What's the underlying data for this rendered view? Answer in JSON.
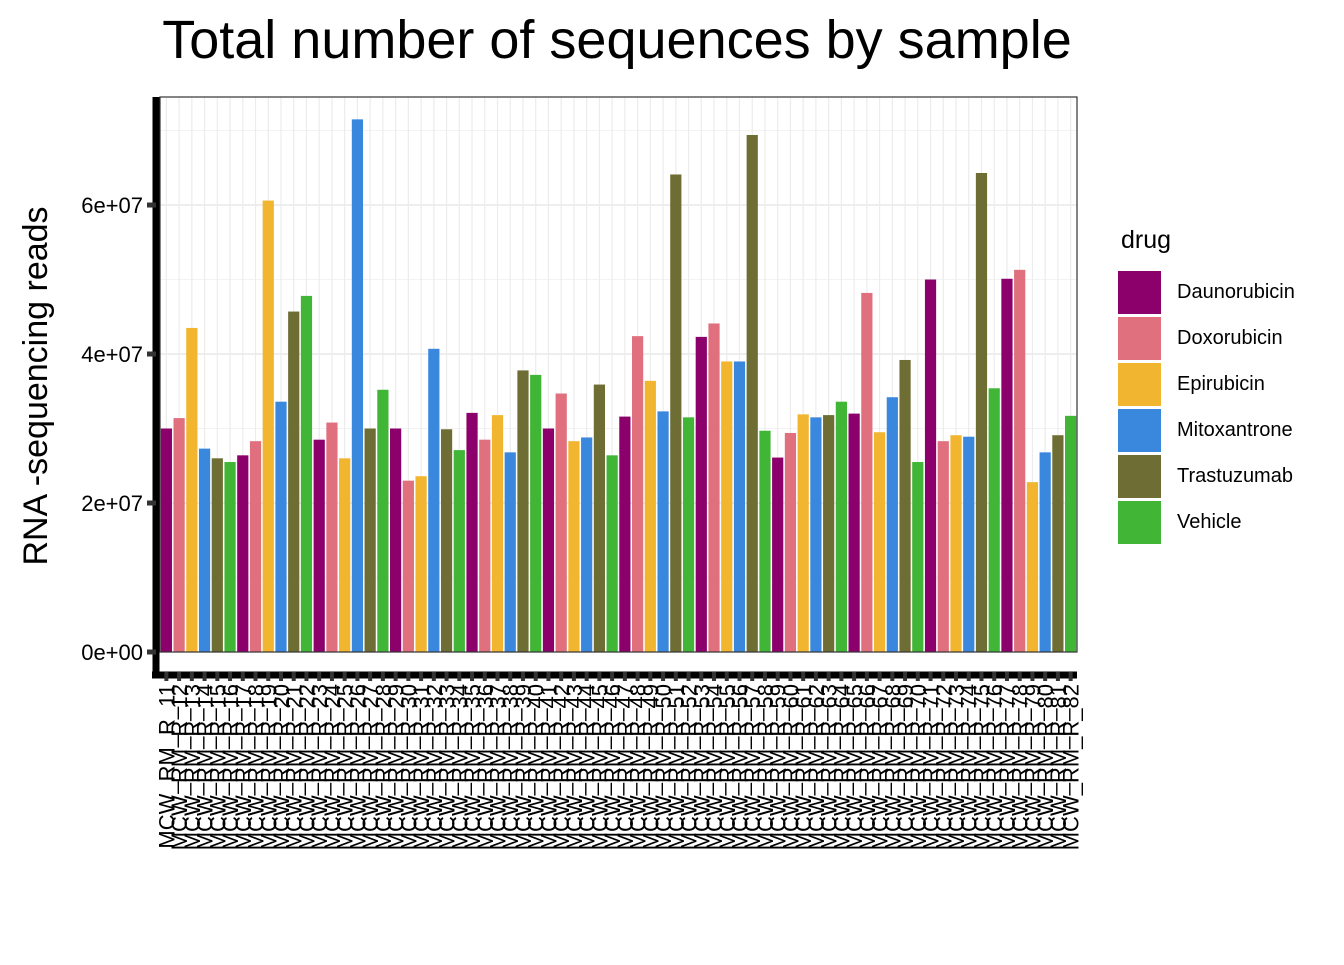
{
  "chart_data": {
    "type": "bar",
    "title": "Total number of sequences by sample",
    "xlabel": "",
    "ylabel": "RNA -sequencing reads",
    "ylim": [
      0,
      74500000
    ],
    "yticks": [
      0,
      20000000,
      40000000,
      60000000
    ],
    "ytick_labels": [
      "0e+00",
      "2e+07",
      "4e+07",
      "6e+07"
    ],
    "grid": true,
    "legend": {
      "title": "drug",
      "placement": "right"
    },
    "series_colors": {
      "Daunorubicin": "#8B006B",
      "Doxorubicin": "#E0707E",
      "Epirubicin": "#F2B530",
      "Mitoxantrone": "#3A87DE",
      "Trastuzumab": "#6E6E34",
      "Vehicle": "#41B535"
    },
    "legend_items": [
      "Daunorubicin",
      "Doxorubicin",
      "Epirubicin",
      "Mitoxantrone",
      "Trastuzumab",
      "Vehicle"
    ],
    "categories": [
      "MCW_RM_R_11",
      "MCW_RM_R_12",
      "MCW_RM_R_13",
      "MCW_RM_R_14",
      "MCW_RM_R_15",
      "MCW_RM_R_16",
      "MCW_RM_R_17",
      "MCW_RM_R_18",
      "MCW_RM_R_19",
      "MCW_RM_R_20",
      "MCW_RM_R_21",
      "MCW_RM_R_22",
      "MCW_RM_R_23",
      "MCW_RM_R_24",
      "MCW_RM_R_25",
      "MCW_RM_R_26",
      "MCW_RM_R_27",
      "MCW_RM_R_28",
      "MCW_RM_R_29",
      "MCW_RM_R_30",
      "MCW_RM_R_31",
      "MCW_RM_R_32",
      "MCW_RM_R_33",
      "MCW_RM_R_34",
      "MCW_RM_R_35",
      "MCW_RM_R_36",
      "MCW_RM_R_37",
      "MCW_RM_R_38",
      "MCW_RM_R_39",
      "MCW_RM_R_40",
      "MCW_RM_R_41",
      "MCW_RM_R_42",
      "MCW_RM_R_43",
      "MCW_RM_R_44",
      "MCW_RM_R_45",
      "MCW_RM_R_46",
      "MCW_RM_R_47",
      "MCW_RM_R_48",
      "MCW_RM_R_49",
      "MCW_RM_R_50",
      "MCW_RM_R_51",
      "MCW_RM_R_52",
      "MCW_RM_R_53",
      "MCW_RM_R_54",
      "MCW_RM_R_55",
      "MCW_RM_R_56",
      "MCW_RM_R_57",
      "MCW_RM_R_58",
      "MCW_RM_R_59",
      "MCW_RM_R_60",
      "MCW_RM_R_61",
      "MCW_RM_R_62",
      "MCW_RM_R_63",
      "MCW_RM_R_64",
      "MCW_RM_R_65",
      "MCW_RM_R_66",
      "MCW_RM_R_67",
      "MCW_RM_R_68",
      "MCW_RM_R_69",
      "MCW_RM_R_70",
      "MCW_RM_R_71",
      "MCW_RM_R_72",
      "MCW_RM_R_73",
      "MCW_RM_R_74",
      "MCW_RM_R_75",
      "MCW_RM_R_76",
      "MCW_RM_R_77",
      "MCW_RM_R_78",
      "MCW_RM_R_79",
      "MCW_RM_R_80",
      "MCW_RM_R_81",
      "MCW_RM_R_82"
    ],
    "drugs": [
      "Daunorubicin",
      "Doxorubicin",
      "Epirubicin",
      "Mitoxantrone",
      "Trastuzumab",
      "Vehicle",
      "Daunorubicin",
      "Doxorubicin",
      "Epirubicin",
      "Mitoxantrone",
      "Trastuzumab",
      "Vehicle",
      "Daunorubicin",
      "Doxorubicin",
      "Epirubicin",
      "Mitoxantrone",
      "Trastuzumab",
      "Vehicle",
      "Daunorubicin",
      "Doxorubicin",
      "Epirubicin",
      "Mitoxantrone",
      "Trastuzumab",
      "Vehicle",
      "Daunorubicin",
      "Doxorubicin",
      "Epirubicin",
      "Mitoxantrone",
      "Trastuzumab",
      "Vehicle",
      "Daunorubicin",
      "Doxorubicin",
      "Epirubicin",
      "Mitoxantrone",
      "Trastuzumab",
      "Vehicle",
      "Daunorubicin",
      "Doxorubicin",
      "Epirubicin",
      "Mitoxantrone",
      "Trastuzumab",
      "Vehicle",
      "Daunorubicin",
      "Doxorubicin",
      "Epirubicin",
      "Mitoxantrone",
      "Trastuzumab",
      "Vehicle",
      "Daunorubicin",
      "Doxorubicin",
      "Epirubicin",
      "Mitoxantrone",
      "Trastuzumab",
      "Vehicle",
      "Daunorubicin",
      "Doxorubicin",
      "Epirubicin",
      "Mitoxantrone",
      "Trastuzumab",
      "Vehicle",
      "Daunorubicin",
      "Doxorubicin",
      "Epirubicin",
      "Mitoxantrone",
      "Trastuzumab",
      "Vehicle",
      "Daunorubicin",
      "Doxorubicin",
      "Epirubicin",
      "Mitoxantrone",
      "Trastuzumab",
      "Vehicle"
    ],
    "values": [
      30000000,
      31400000,
      43500000,
      27300000,
      26000000,
      25500000,
      26400000,
      28300000,
      60600000,
      33600000,
      45700000,
      47800000,
      28500000,
      30800000,
      26000000,
      71500000,
      30000000,
      35200000,
      30000000,
      23000000,
      23600000,
      40700000,
      29900000,
      27100000,
      32100000,
      28500000,
      31800000,
      26800000,
      37800000,
      37200000,
      30000000,
      34700000,
      28300000,
      28800000,
      35900000,
      26400000,
      31600000,
      42400000,
      36400000,
      32300000,
      64100000,
      31500000,
      42300000,
      44100000,
      39000000,
      39000000,
      69400000,
      29700000,
      26100000,
      29400000,
      31900000,
      31500000,
      31800000,
      33600000,
      32000000,
      48200000,
      29500000,
      34200000,
      39200000,
      25500000,
      50000000,
      28300000,
      29100000,
      28900000,
      64300000,
      35400000,
      50100000,
      51300000,
      22800000,
      26800000,
      29100000,
      31700000
    ]
  }
}
